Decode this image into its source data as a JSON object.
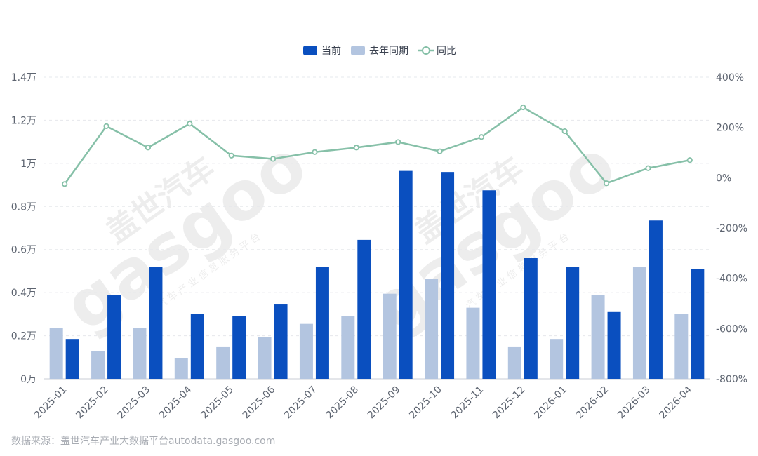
{
  "chart_data": {
    "type": "bar",
    "legend": {
      "position": "top-center",
      "items": [
        {
          "label": "当前",
          "color": "#0a4fbf",
          "kind": "bar"
        },
        {
          "label": "去年同期",
          "color": "#b3c5e0",
          "kind": "bar"
        },
        {
          "label": "同比",
          "color": "#86c0a8",
          "kind": "line"
        }
      ]
    },
    "categories": [
      "2025-01",
      "2025-02",
      "2025-03",
      "2025-04",
      "2025-05",
      "2025-06",
      "2025-07",
      "2025-08",
      "2025-09",
      "2025-10",
      "2025-11",
      "2025-12",
      "2026-01",
      "2026-02",
      "2026-03",
      "2026-04"
    ],
    "series": [
      {
        "name": "当前",
        "type": "bar",
        "axis": "left",
        "color": "#0a4fbf",
        "values": [
          1850,
          3900,
          5200,
          3000,
          2900,
          3450,
          5200,
          6450,
          9650,
          9600,
          8750,
          5600,
          5200,
          3100,
          7350,
          5100
        ]
      },
      {
        "name": "去年同期",
        "type": "bar",
        "axis": "left",
        "color": "#b3c5e0",
        "values": [
          2350,
          1300,
          2350,
          950,
          1500,
          1950,
          2550,
          2900,
          3950,
          4650,
          3300,
          1500,
          1850,
          3900,
          5200,
          3000
        ]
      },
      {
        "name": "同比",
        "type": "line",
        "axis": "right",
        "color": "#86c0a8",
        "values": [
          -25,
          205,
          120,
          215,
          88,
          75,
          102,
          120,
          142,
          105,
          162,
          280,
          185,
          -22,
          38,
          70
        ]
      }
    ],
    "y_left": {
      "ticks": [
        "0万",
        "0.2万",
        "0.4万",
        "0.6万",
        "0.8万",
        "1万",
        "1.2万",
        "1.4万"
      ],
      "ylim": [
        0,
        14000
      ]
    },
    "y_right": {
      "ticks": [
        "-800%",
        "-600%",
        "-400%",
        "-200%",
        "0%",
        "200%",
        "400%"
      ],
      "ylim": [
        -800,
        400
      ]
    },
    "grid": "horizontal dashed"
  },
  "watermark": {
    "text_cn": "盖世汽车",
    "text_en": "gasgoo",
    "sub": "汽车产业信息服务平台"
  },
  "source": "数据来源：盖世汽车产业大数据平台autodata.gasgoo.com"
}
